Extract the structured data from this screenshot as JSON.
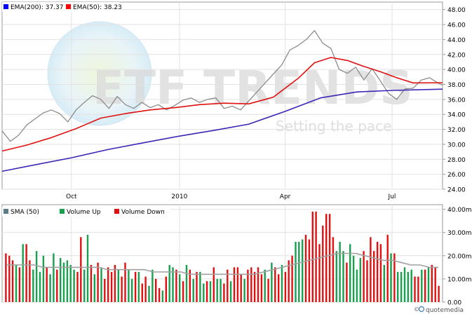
{
  "watermark": {
    "logo_text": "ETF TRENDS",
    "tagline": "Setting the pace"
  },
  "attribution": {
    "copyright": "©",
    "brand": "quotemedia"
  },
  "chart_data": [
    {
      "type": "line",
      "panel": "price",
      "legend": [
        {
          "name": "EMA(200)",
          "value_label": "37.37",
          "color": "#3a27b6",
          "swatch": "#0000ff"
        },
        {
          "name": "EMA(50)",
          "value_label": "38.23",
          "color": "#e01010",
          "swatch": "#ff0000"
        }
      ],
      "legend_placement": "top-left",
      "x_tick_labels": [
        {
          "label": "Oct",
          "date": "2009-10-01"
        },
        {
          "label": "2010",
          "date": "2010-01-01"
        },
        {
          "label": "Apr",
          "date": "2010-04-01"
        },
        {
          "label": "Jul",
          "date": "2010-07-01"
        }
      ],
      "xlim": [
        "2009-08-03",
        "2010-08-13"
      ],
      "ylim": [
        24,
        49
      ],
      "y_ticks": [
        "24.00",
        "26.00",
        "28.00",
        "30.00",
        "32.00",
        "34.00",
        "36.00",
        "38.00",
        "40.00",
        "42.00",
        "44.00",
        "46.00",
        "48.00"
      ],
      "y_axis_side": "right",
      "grid": true,
      "series": [
        {
          "role": "price",
          "color": "#8c8c8c",
          "points": [
            [
              "2009-08-03",
              31.8
            ],
            [
              "2009-08-10",
              30.4
            ],
            [
              "2009-08-17",
              31.2
            ],
            [
              "2009-08-24",
              32.6
            ],
            [
              "2009-08-31",
              33.4
            ],
            [
              "2009-09-07",
              34.2
            ],
            [
              "2009-09-14",
              34.6
            ],
            [
              "2009-09-21",
              34.1
            ],
            [
              "2009-09-28",
              33.0
            ],
            [
              "2009-10-05",
              34.6
            ],
            [
              "2009-10-12",
              35.6
            ],
            [
              "2009-10-19",
              36.5
            ],
            [
              "2009-10-26",
              36.0
            ],
            [
              "2009-11-02",
              34.8
            ],
            [
              "2009-11-09",
              36.4
            ],
            [
              "2009-11-16",
              35.3
            ],
            [
              "2009-11-23",
              34.8
            ],
            [
              "2009-11-30",
              35.6
            ],
            [
              "2009-12-07",
              34.9
            ],
            [
              "2009-12-14",
              35.3
            ],
            [
              "2009-12-21",
              34.6
            ],
            [
              "2009-12-28",
              35.2
            ],
            [
              "2010-01-04",
              35.9
            ],
            [
              "2010-01-11",
              36.2
            ],
            [
              "2010-01-18",
              35.6
            ],
            [
              "2010-01-25",
              36.0
            ],
            [
              "2010-02-01",
              36.2
            ],
            [
              "2010-02-08",
              34.8
            ],
            [
              "2010-02-15",
              35.1
            ],
            [
              "2010-02-22",
              34.6
            ],
            [
              "2010-03-01",
              35.8
            ],
            [
              "2010-03-08",
              37.0
            ],
            [
              "2010-03-15",
              38.2
            ],
            [
              "2010-03-22",
              39.4
            ],
            [
              "2010-03-29",
              40.6
            ],
            [
              "2010-04-05",
              42.6
            ],
            [
              "2010-04-12",
              43.2
            ],
            [
              "2010-04-19",
              44.0
            ],
            [
              "2010-04-26",
              45.2
            ],
            [
              "2010-05-03",
              43.5
            ],
            [
              "2010-05-10",
              42.8
            ],
            [
              "2010-05-17",
              40.0
            ],
            [
              "2010-05-24",
              39.5
            ],
            [
              "2010-05-31",
              40.3
            ],
            [
              "2010-06-07",
              38.6
            ],
            [
              "2010-06-14",
              40.1
            ],
            [
              "2010-06-21",
              38.5
            ],
            [
              "2010-06-28",
              36.8
            ],
            [
              "2010-07-05",
              36.0
            ],
            [
              "2010-07-12",
              37.4
            ],
            [
              "2010-07-19",
              37.5
            ],
            [
              "2010-07-26",
              38.6
            ],
            [
              "2010-08-02",
              38.9
            ],
            [
              "2010-08-09",
              38.2
            ],
            [
              "2010-08-13",
              37.9
            ]
          ]
        },
        {
          "role": "ema50",
          "name": "EMA(50)",
          "color": "#e01010",
          "points": [
            [
              "2009-08-03",
              29.1
            ],
            [
              "2009-08-24",
              29.9
            ],
            [
              "2009-09-14",
              30.9
            ],
            [
              "2009-10-05",
              32.1
            ],
            [
              "2009-10-26",
              33.5
            ],
            [
              "2009-11-16",
              34.1
            ],
            [
              "2009-12-07",
              34.6
            ],
            [
              "2009-12-28",
              34.9
            ],
            [
              "2010-01-18",
              35.3
            ],
            [
              "2010-02-08",
              35.5
            ],
            [
              "2010-03-01",
              35.4
            ],
            [
              "2010-03-22",
              36.3
            ],
            [
              "2010-04-12",
              38.8
            ],
            [
              "2010-04-26",
              40.9
            ],
            [
              "2010-05-10",
              41.6
            ],
            [
              "2010-05-24",
              41.2
            ],
            [
              "2010-06-07",
              40.4
            ],
            [
              "2010-06-21",
              39.7
            ],
            [
              "2010-07-05",
              38.9
            ],
            [
              "2010-07-19",
              38.2
            ],
            [
              "2010-08-13",
              38.23
            ]
          ]
        },
        {
          "role": "ema200",
          "name": "EMA(200)",
          "color": "#3a27b6",
          "points": [
            [
              "2009-08-03",
              26.4
            ],
            [
              "2009-09-01",
              27.3
            ],
            [
              "2009-10-01",
              28.2
            ],
            [
              "2009-11-01",
              29.3
            ],
            [
              "2009-12-01",
              30.2
            ],
            [
              "2010-01-01",
              31.1
            ],
            [
              "2010-02-01",
              31.9
            ],
            [
              "2010-03-01",
              32.7
            ],
            [
              "2010-04-01",
              34.4
            ],
            [
              "2010-05-01",
              36.2
            ],
            [
              "2010-06-01",
              37.0
            ],
            [
              "2010-07-01",
              37.2
            ],
            [
              "2010-08-13",
              37.37
            ]
          ]
        }
      ]
    },
    {
      "type": "bar",
      "panel": "volume",
      "legend": [
        {
          "name": "SMA (50)",
          "color": "#a0a0a0",
          "swatch": "#5b7b86"
        },
        {
          "name": "Volume Up",
          "color": "#18a04e",
          "swatch": "#18a04e"
        },
        {
          "name": "Volume Down",
          "color": "#e01010",
          "swatch": "#e01010"
        }
      ],
      "legend_placement": "top-left",
      "xlim": [
        "2009-08-03",
        "2010-08-13"
      ],
      "ylim": [
        0,
        42
      ],
      "y_ticks": [
        "0.00",
        "10.00m",
        "20.00m",
        "30.00m",
        "40.00m"
      ],
      "y_axis_side": "right",
      "unit": "millions",
      "grid": true,
      "bars": [
        {
          "v": 21,
          "d": "down"
        },
        {
          "v": 20,
          "d": "down"
        },
        {
          "v": 18,
          "d": "down"
        },
        {
          "v": 16,
          "d": "up"
        },
        {
          "v": 15,
          "d": "down"
        },
        {
          "v": 25,
          "d": "up"
        },
        {
          "v": 25,
          "d": "down"
        },
        {
          "v": 18,
          "d": "down"
        },
        {
          "v": 14,
          "d": "up"
        },
        {
          "v": 22,
          "d": "up"
        },
        {
          "v": 13,
          "d": "up"
        },
        {
          "v": 20,
          "d": "up"
        },
        {
          "v": 15,
          "d": "down"
        },
        {
          "v": 12,
          "d": "up"
        },
        {
          "v": 21,
          "d": "up"
        },
        {
          "v": 14,
          "d": "down"
        },
        {
          "v": 19,
          "d": "up"
        },
        {
          "v": 17,
          "d": "up"
        },
        {
          "v": 18,
          "d": "up"
        },
        {
          "v": 16,
          "d": "up"
        },
        {
          "v": 14,
          "d": "up"
        },
        {
          "v": 13,
          "d": "down"
        },
        {
          "v": 28,
          "d": "down"
        },
        {
          "v": 14,
          "d": "up"
        },
        {
          "v": 29,
          "d": "up"
        },
        {
          "v": 16,
          "d": "down"
        },
        {
          "v": 12,
          "d": "up"
        },
        {
          "v": 17,
          "d": "down"
        },
        {
          "v": 15,
          "d": "up"
        },
        {
          "v": 10,
          "d": "down"
        },
        {
          "v": 15,
          "d": "down"
        },
        {
          "v": 13,
          "d": "down"
        },
        {
          "v": 16,
          "d": "down"
        },
        {
          "v": 14,
          "d": "up"
        },
        {
          "v": 11,
          "d": "down"
        },
        {
          "v": 17,
          "d": "down"
        },
        {
          "v": 14,
          "d": "up"
        },
        {
          "v": 10,
          "d": "up"
        },
        {
          "v": 13,
          "d": "down"
        },
        {
          "v": 13,
          "d": "up"
        },
        {
          "v": 8,
          "d": "down"
        },
        {
          "v": 11,
          "d": "down"
        },
        {
          "v": 7,
          "d": "up"
        },
        {
          "v": 14,
          "d": "up"
        },
        {
          "v": 10,
          "d": "down"
        },
        {
          "v": 6,
          "d": "down"
        },
        {
          "v": 5,
          "d": "up"
        },
        {
          "v": 11,
          "d": "down"
        },
        {
          "v": 16,
          "d": "up"
        },
        {
          "v": 15,
          "d": "up"
        },
        {
          "v": 14,
          "d": "down"
        },
        {
          "v": 12,
          "d": "up"
        },
        {
          "v": 9,
          "d": "down"
        },
        {
          "v": 16,
          "d": "up"
        },
        {
          "v": 14,
          "d": "down"
        },
        {
          "v": 10,
          "d": "up"
        },
        {
          "v": 13,
          "d": "down"
        },
        {
          "v": 13,
          "d": "up"
        },
        {
          "v": 8,
          "d": "up"
        },
        {
          "v": 9,
          "d": "down"
        },
        {
          "v": 9,
          "d": "up"
        },
        {
          "v": 15,
          "d": "down"
        },
        {
          "v": 10,
          "d": "up"
        },
        {
          "v": 10,
          "d": "up"
        },
        {
          "v": 8,
          "d": "down"
        },
        {
          "v": 14,
          "d": "down"
        },
        {
          "v": 9,
          "d": "up"
        },
        {
          "v": 15,
          "d": "down"
        },
        {
          "v": 15,
          "d": "down"
        },
        {
          "v": 12,
          "d": "down"
        },
        {
          "v": 10,
          "d": "up"
        },
        {
          "v": 14,
          "d": "down"
        },
        {
          "v": 15,
          "d": "down"
        },
        {
          "v": 13,
          "d": "down"
        },
        {
          "v": 15,
          "d": "down"
        },
        {
          "v": 12,
          "d": "down"
        },
        {
          "v": 14,
          "d": "up"
        },
        {
          "v": 10,
          "d": "down"
        },
        {
          "v": 17,
          "d": "up"
        },
        {
          "v": 15,
          "d": "down"
        },
        {
          "v": 12,
          "d": "down"
        },
        {
          "v": 16,
          "d": "up"
        },
        {
          "v": 13,
          "d": "down"
        },
        {
          "v": 18,
          "d": "down"
        },
        {
          "v": 20,
          "d": "down"
        },
        {
          "v": 26,
          "d": "up"
        },
        {
          "v": 26,
          "d": "up"
        },
        {
          "v": 27,
          "d": "up"
        },
        {
          "v": 29,
          "d": "down"
        },
        {
          "v": 27,
          "d": "down"
        },
        {
          "v": 39,
          "d": "down"
        },
        {
          "v": 39,
          "d": "down"
        },
        {
          "v": 25,
          "d": "down"
        },
        {
          "v": 33,
          "d": "down"
        },
        {
          "v": 38,
          "d": "down"
        },
        {
          "v": 38,
          "d": "down"
        },
        {
          "v": 28,
          "d": "down"
        },
        {
          "v": 22,
          "d": "up"
        },
        {
          "v": 26,
          "d": "up"
        },
        {
          "v": 22,
          "d": "up"
        },
        {
          "v": 17,
          "d": "down"
        },
        {
          "v": 25,
          "d": "up"
        },
        {
          "v": 20,
          "d": "up"
        },
        {
          "v": 14,
          "d": "up"
        },
        {
          "v": 19,
          "d": "up"
        },
        {
          "v": 22,
          "d": "down"
        },
        {
          "v": 18,
          "d": "down"
        },
        {
          "v": 28,
          "d": "down"
        },
        {
          "v": 22,
          "d": "down"
        },
        {
          "v": 26,
          "d": "down"
        },
        {
          "v": 25,
          "d": "down"
        },
        {
          "v": 16,
          "d": "up"
        },
        {
          "v": 29,
          "d": "down"
        },
        {
          "v": 21,
          "d": "up"
        },
        {
          "v": 21,
          "d": "down"
        },
        {
          "v": 13,
          "d": "up"
        },
        {
          "v": 13,
          "d": "up"
        },
        {
          "v": 15,
          "d": "up"
        },
        {
          "v": 13,
          "d": "up"
        },
        {
          "v": 14,
          "d": "up"
        },
        {
          "v": 11,
          "d": "down"
        },
        {
          "v": 11,
          "d": "down"
        },
        {
          "v": 14,
          "d": "up"
        },
        {
          "v": 14,
          "d": "down"
        },
        {
          "v": 15,
          "d": "up"
        },
        {
          "v": 16,
          "d": "down"
        },
        {
          "v": 15,
          "d": "down"
        },
        {
          "v": 7,
          "d": "down"
        }
      ],
      "sma50": [
        16,
        16,
        16,
        16,
        15,
        15,
        15,
        15,
        15,
        15,
        15,
        14,
        14,
        14,
        14,
        14,
        13,
        13,
        13,
        13,
        12,
        12,
        12,
        12,
        12,
        12,
        12,
        12,
        13,
        14,
        15,
        16,
        17,
        18,
        19,
        20,
        21,
        21,
        21,
        20,
        19,
        18,
        18,
        17,
        16,
        16,
        15,
        15
      ]
    }
  ]
}
